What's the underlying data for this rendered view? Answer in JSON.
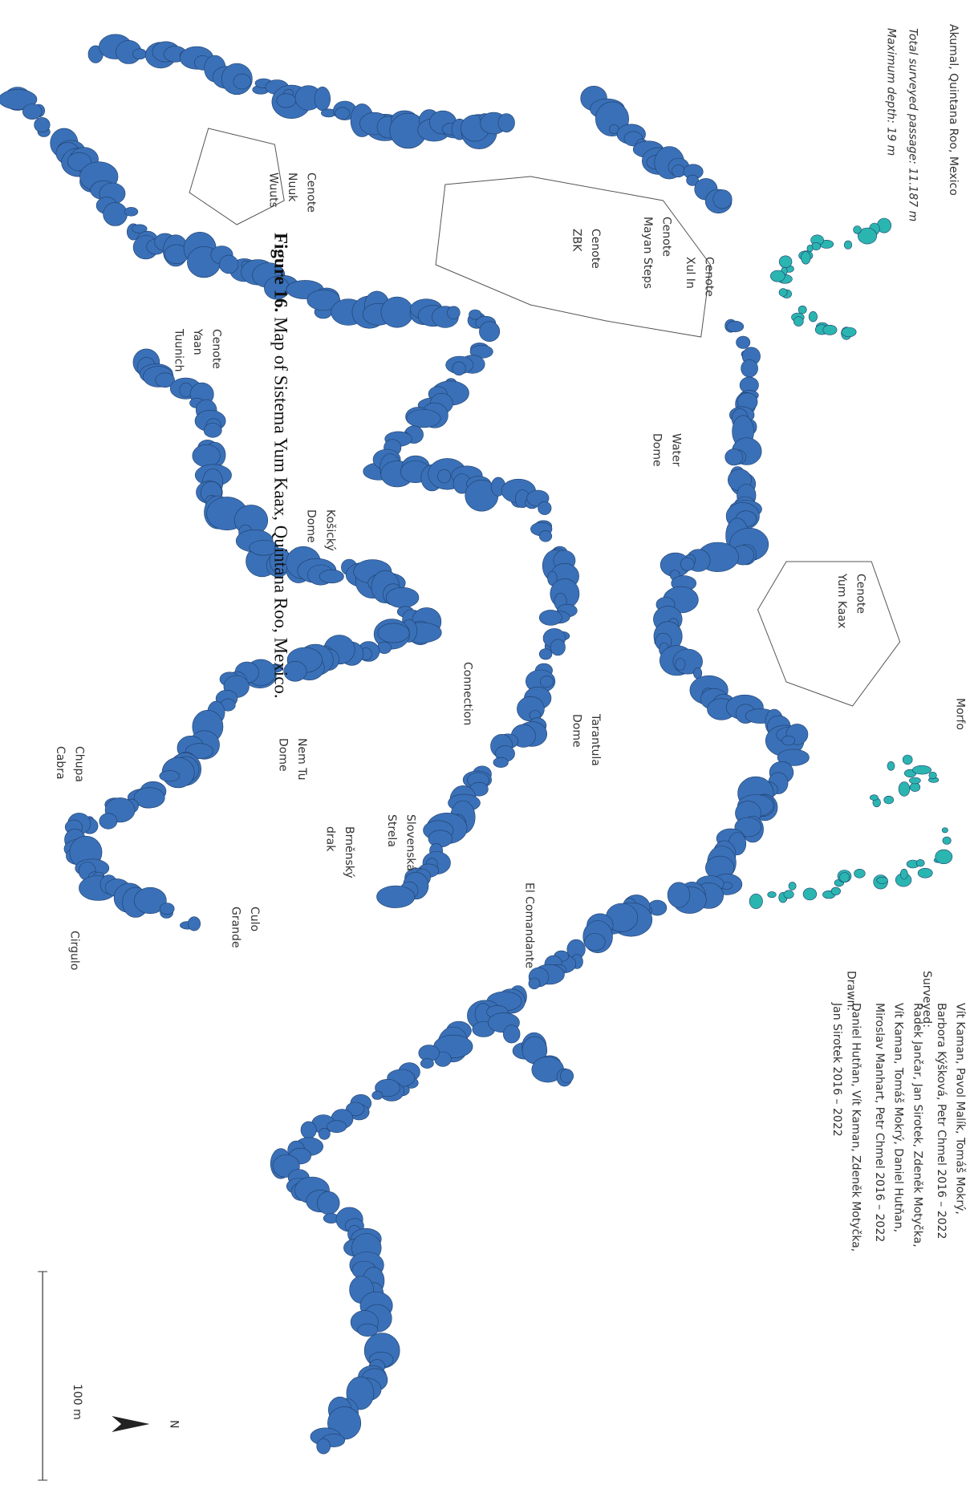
{
  "header": {
    "title": "Akumal, Quintana Roo, Mexico",
    "passage": "Total surveyed passage: 11.187 m",
    "depth": "Maximum depth: 19 m"
  },
  "credits": [
    {
      "role": "Surveyed:",
      "lines": [
        "Vít Kaman, Pavol Malík, Tomáš Mokrý,",
        "Barbora Kýšková, Petr Chmel  2016 – 2022",
        "Radek Jančar, Jan Sirotek, Zdeněk Motyčka,",
        "Vít Kaman, Tomáš Mokrý, Daniel Hutňan,",
        "Miroslav Manhart,  Petr Chmel  2016 – 2022"
      ]
    },
    {
      "role": "Drawn:",
      "lines": [
        "Daniel Hutňan, Vít Kaman, Zdeněk Motyčka,",
        "Jan Sirotek  2016 – 2022"
      ]
    }
  ],
  "places": [
    {
      "lines": [
        "Cenote",
        "Nuuk",
        "Wuuts"
      ]
    },
    {
      "lines": [
        "Cenote",
        "Xul In"
      ]
    },
    {
      "lines": [
        "Cenote",
        "Mayan Steps"
      ]
    },
    {
      "lines": [
        "Cenote",
        "ZBK"
      ]
    },
    {
      "lines": [
        "Cenote",
        "Yaan",
        "Tuunich"
      ]
    },
    {
      "lines": [
        "Water",
        "Dome"
      ]
    },
    {
      "lines": [
        "Košický",
        "Dome"
      ]
    },
    {
      "lines": [
        "Cenote",
        "Yum Kaax"
      ]
    },
    {
      "lines": [
        "Morfo"
      ]
    },
    {
      "lines": [
        "Connection"
      ]
    },
    {
      "lines": [
        "Tarantula",
        "Dome"
      ]
    },
    {
      "lines": [
        "Nem Tu",
        "Dome"
      ]
    },
    {
      "lines": [
        "Slovenská",
        "Strela"
      ]
    },
    {
      "lines": [
        "Brněnský",
        "drak"
      ]
    },
    {
      "lines": [
        "El Comandante"
      ]
    },
    {
      "lines": [
        "Chupa",
        "Cabra"
      ]
    },
    {
      "lines": [
        "Culo",
        "Grande"
      ]
    },
    {
      "lines": [
        "Cirgulo"
      ]
    }
  ],
  "scale_bar": "100 m",
  "north": "N",
  "caption": {
    "label": "Figure 16.",
    "text": " Map of Sistema Yum Kaax, Quintana Roo, Mexico."
  }
}
